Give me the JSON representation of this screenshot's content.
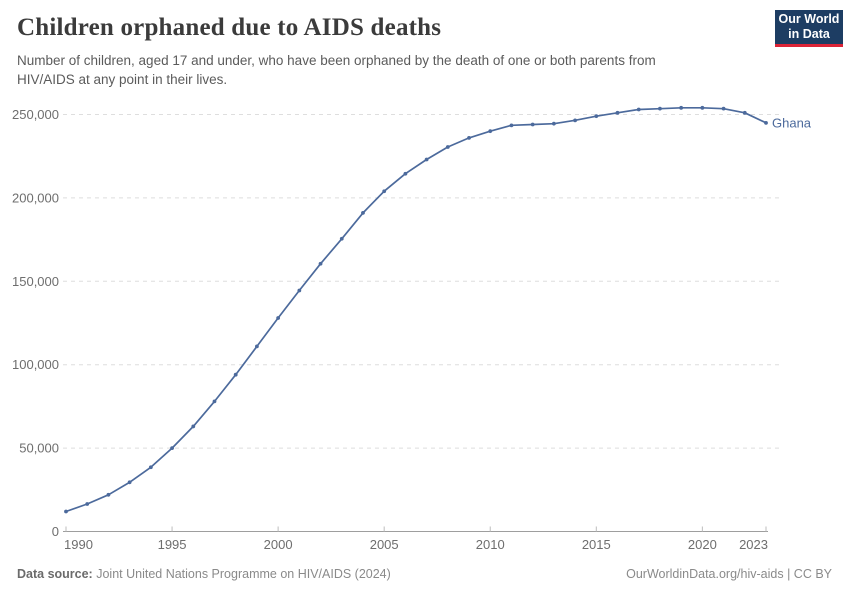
{
  "chart_data": {
    "type": "line",
    "title": "Children orphaned due to AIDS deaths",
    "subtitle": "Number of children, aged 17 and under, who have been orphaned by the death of one or both parents from\nHIV/AIDS at any point in their lives.",
    "entity": "Ghana",
    "x": [
      1990,
      1991,
      1992,
      1993,
      1994,
      1995,
      1996,
      1997,
      1998,
      1999,
      2000,
      2001,
      2002,
      2003,
      2004,
      2005,
      2006,
      2007,
      2008,
      2009,
      2010,
      2011,
      2012,
      2013,
      2014,
      2015,
      2016,
      2017,
      2018,
      2019,
      2020,
      2021,
      2022,
      2023
    ],
    "values": [
      12000,
      16500,
      22000,
      29500,
      38500,
      50000,
      63000,
      78000,
      94000,
      111000,
      128000,
      144500,
      160500,
      175500,
      191000,
      204000,
      214500,
      223000,
      230500,
      236000,
      240000,
      243500,
      244000,
      244500,
      246500,
      249000,
      251000,
      253000,
      253500,
      254000,
      254000,
      253500,
      251000,
      245000
    ],
    "xlabel": "",
    "ylabel": "",
    "ylim": [
      0,
      250000
    ],
    "yticks": [
      0,
      50000,
      100000,
      150000,
      200000,
      250000
    ],
    "ytick_labels": [
      "0",
      "50,000",
      "100,000",
      "150,000",
      "200,000",
      "250,000"
    ],
    "xticks": [
      1990,
      1995,
      2000,
      2005,
      2010,
      2015,
      2020,
      2023
    ],
    "grid": "horizontal-dashed",
    "legend": "entity-label-right",
    "line_color": "#4C6A9C",
    "marker": "dot"
  },
  "logo": {
    "line1": "Our World",
    "line2": "in Data"
  },
  "footer": {
    "source_label": "Data source:",
    "source": "Joint United Nations Programme on HIV/AIDS (2024)",
    "right": "OurWorldinData.org/hiv-aids | CC BY"
  },
  "colors": {
    "line": "#4C6A9C",
    "grid": "#dedede",
    "axis": "#9e9e9e",
    "tick": "#bdbdbd",
    "tick_label": "#6e6e6e",
    "title": "#3b3b3b",
    "subtitle": "#5b5b5b",
    "logo_bg": "#1d3d63",
    "logo_red": "#dc2437"
  }
}
